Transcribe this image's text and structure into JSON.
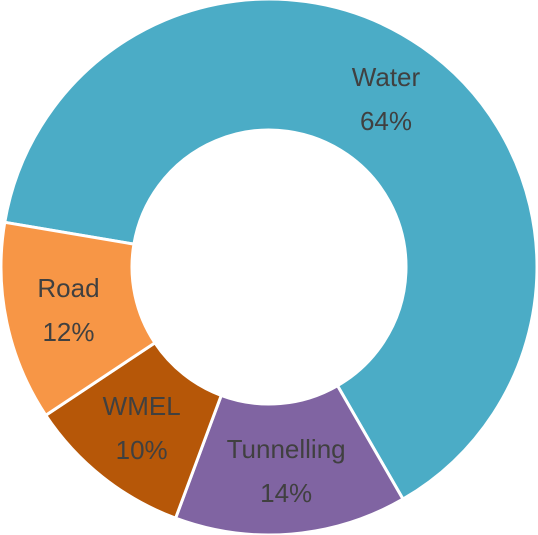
{
  "chart_data": {
    "type": "donut",
    "categories": [
      "Water",
      "Tunnelling",
      "WMEL",
      "Road"
    ],
    "values": [
      64,
      14,
      10,
      12
    ],
    "value_labels": [
      "64%",
      "14%",
      "10%",
      "12%"
    ],
    "colors": [
      "#4bacc6",
      "#8064a2",
      "#b65708",
      "#f79646"
    ]
  }
}
